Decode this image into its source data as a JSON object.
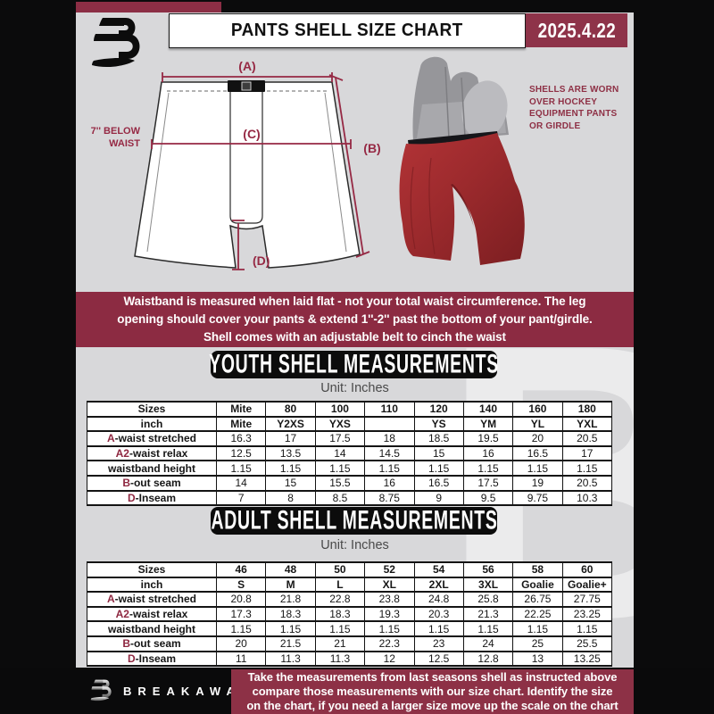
{
  "header": {
    "title": "PANTS SHELL SIZE CHART",
    "date": "2025.4.22"
  },
  "diagram": {
    "label_a": "(A)",
    "label_b": "(B)",
    "label_c": "(C)",
    "label_d": "(D)",
    "waist_note_line1": "7'' BELOW",
    "waist_note_line2": "WAIST"
  },
  "photo_note": {
    "lines": [
      "SHELLS ARE WORN",
      "OVER HOCKEY",
      "EQUIPMENT PANTS",
      "OR GIRDLE"
    ]
  },
  "notice_banner": {
    "lines": [
      "Waistband is measured when laid flat - not your total waist circumference. The leg",
      "opening should cover your pants & extend 1''-2'' past the bottom of your pant/girdle.",
      "Shell comes with an adjustable belt to cinch the waist"
    ]
  },
  "youth": {
    "heading": "YOUTH SHELL MEASUREMENTS",
    "unit": "Unit: Inches",
    "table": {
      "rows": [
        {
          "prefix": "",
          "label": "Sizes",
          "values": [
            "Mite",
            "80",
            "100",
            "110",
            "120",
            "140",
            "160",
            "180"
          ]
        },
        {
          "prefix": "",
          "label": "inch",
          "values": [
            "Mite",
            "Y2XS",
            "YXS",
            "",
            "YS",
            "YM",
            "YL",
            "YXL"
          ]
        },
        {
          "prefix": "A",
          "label": "-waist stretched",
          "values": [
            "16.3",
            "17",
            "17.5",
            "18",
            "18.5",
            "19.5",
            "20",
            "20.5"
          ]
        },
        {
          "prefix": "A2",
          "label": "-waist relax",
          "values": [
            "12.5",
            "13.5",
            "14",
            "14.5",
            "15",
            "16",
            "16.5",
            "17"
          ]
        },
        {
          "prefix": "",
          "label": "waistband height",
          "values": [
            "1.15",
            "1.15",
            "1.15",
            "1.15",
            "1.15",
            "1.15",
            "1.15",
            "1.15"
          ]
        },
        {
          "prefix": "B",
          "label": "-out seam",
          "values": [
            "14",
            "15",
            "15.5",
            "16",
            "16.5",
            "17.5",
            "19",
            "20.5"
          ]
        },
        {
          "prefix": "D",
          "label": "-Inseam",
          "values": [
            "7",
            "8",
            "8.5",
            "8.75",
            "9",
            "9.5",
            "9.75",
            "10.3"
          ]
        }
      ]
    }
  },
  "adult": {
    "heading": "ADULT SHELL MEASUREMENTS",
    "unit": "Unit: Inches",
    "table": {
      "rows": [
        {
          "prefix": "",
          "label": "Sizes",
          "values": [
            "46",
            "48",
            "50",
            "52",
            "54",
            "56",
            "58",
            "60"
          ]
        },
        {
          "prefix": "",
          "label": "inch",
          "values": [
            "S",
            "M",
            "L",
            "XL",
            "2XL",
            "3XL",
            "Goalie",
            "Goalie+"
          ]
        },
        {
          "prefix": "A",
          "label": "-waist stretched",
          "values": [
            "20.8",
            "21.8",
            "22.8",
            "23.8",
            "24.8",
            "25.8",
            "26.75",
            "27.75"
          ]
        },
        {
          "prefix": "A2",
          "label": "-waist relax",
          "values": [
            "17.3",
            "18.3",
            "18.3",
            "19.3",
            "20.3",
            "21.3",
            "22.25",
            "23.25"
          ]
        },
        {
          "prefix": "",
          "label": "waistband height",
          "values": [
            "1.15",
            "1.15",
            "1.15",
            "1.15",
            "1.15",
            "1.15",
            "1.15",
            "1.15"
          ]
        },
        {
          "prefix": "B",
          "label": "-out seam",
          "values": [
            "20",
            "21.5",
            "21",
            "22.3",
            "23",
            "24",
            "25",
            "25.5"
          ]
        },
        {
          "prefix": "D",
          "label": "-Inseam",
          "values": [
            "11",
            "11.3",
            "11.3",
            "12",
            "12.5",
            "12.8",
            "13",
            "13.25"
          ]
        }
      ]
    }
  },
  "footer": {
    "brand": "BREAKAWAY",
    "watermark_letter": "B",
    "lines": [
      "Take the measurements from last seasons shell as instructed above",
      "compare those measurements  with our size chart. Identify the size",
      "on the chart, if you need a larger size move up the scale on the chart"
    ]
  },
  "colors": {
    "maroon": "#8c2b42",
    "date_maroon": "#8e3349",
    "annotation_maroon": "#962944",
    "page_gray": "#d8d8da",
    "shell_red": "#9c2a2d",
    "black": "#0b0b0c"
  }
}
